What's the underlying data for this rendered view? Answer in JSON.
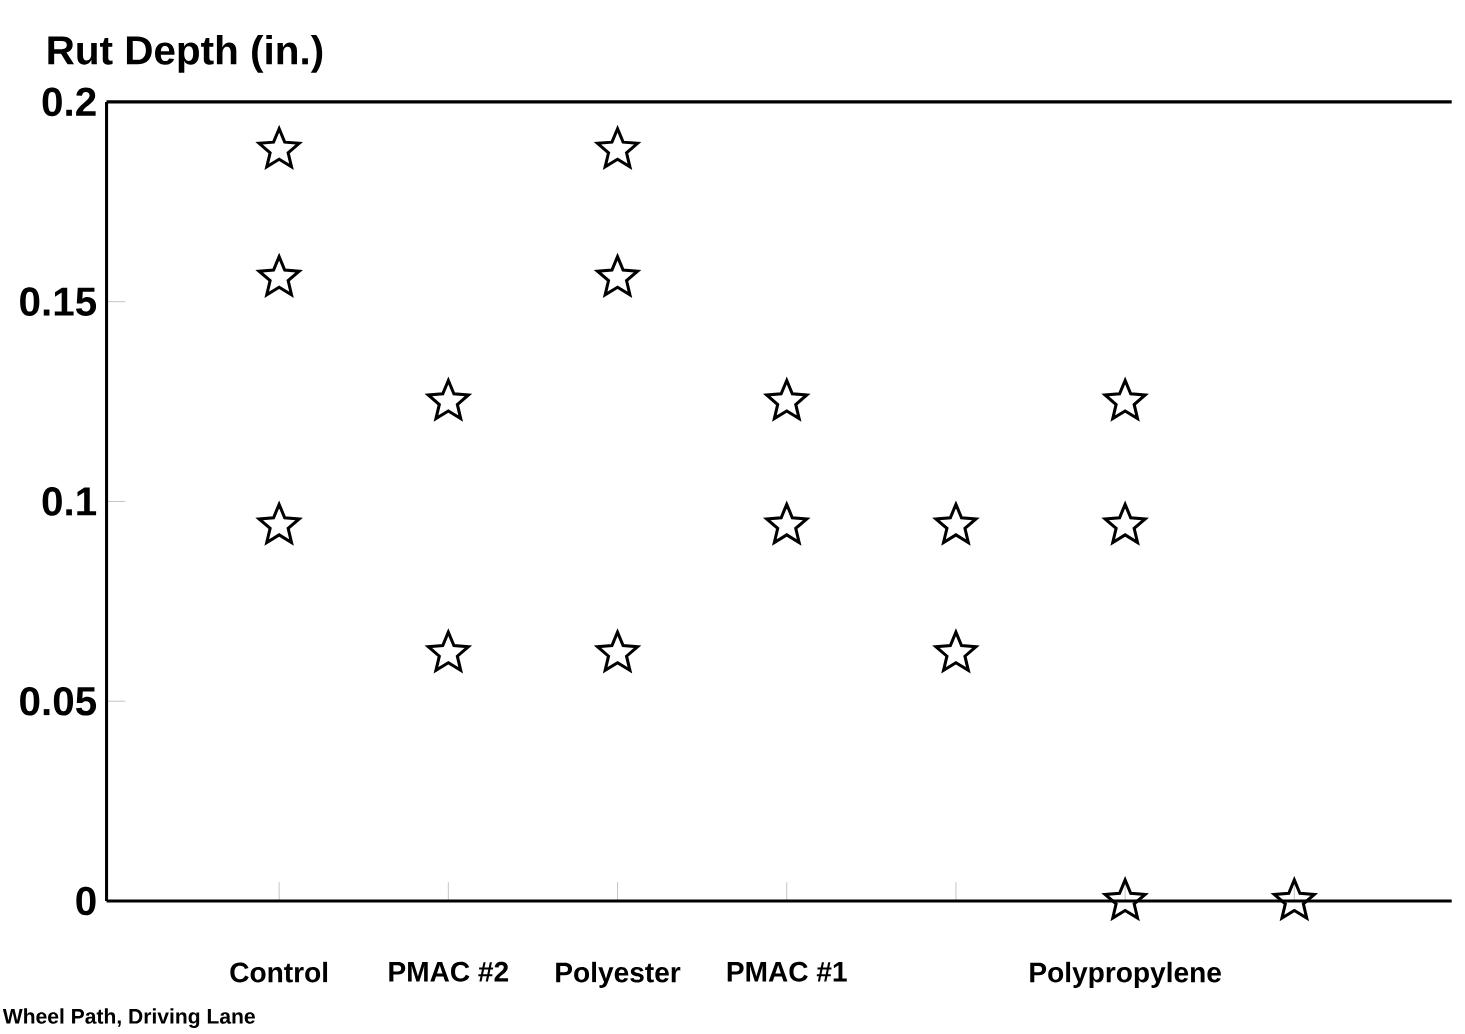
{
  "chart_data": {
    "type": "scatter",
    "ylabel": "Rut Depth (in.)",
    "annotations": [
      "Wheel Path, Driving Lane"
    ],
    "categories": [
      "Control",
      "PMAC #2",
      "Polyester",
      "PMAC #1",
      null,
      "Polypropylene",
      null
    ],
    "series": [
      {
        "color": "#000000",
        "values": [
          0.188,
          0.125,
          0.188,
          0.125,
          0.094,
          0.125,
          0
        ]
      },
      {
        "color": "#000000",
        "values": [
          0.156,
          0.062,
          0.156,
          0.094,
          0.062,
          0.094,
          null
        ]
      },
      {
        "color": "#000000",
        "values": [
          0.094,
          null,
          0.062,
          null,
          null,
          0,
          null
        ]
      }
    ],
    "ylim": [
      0,
      0.2
    ],
    "yticks": [
      0,
      0.05,
      0.1,
      0.15,
      0.2
    ],
    "marker": "star",
    "grid": false
  }
}
